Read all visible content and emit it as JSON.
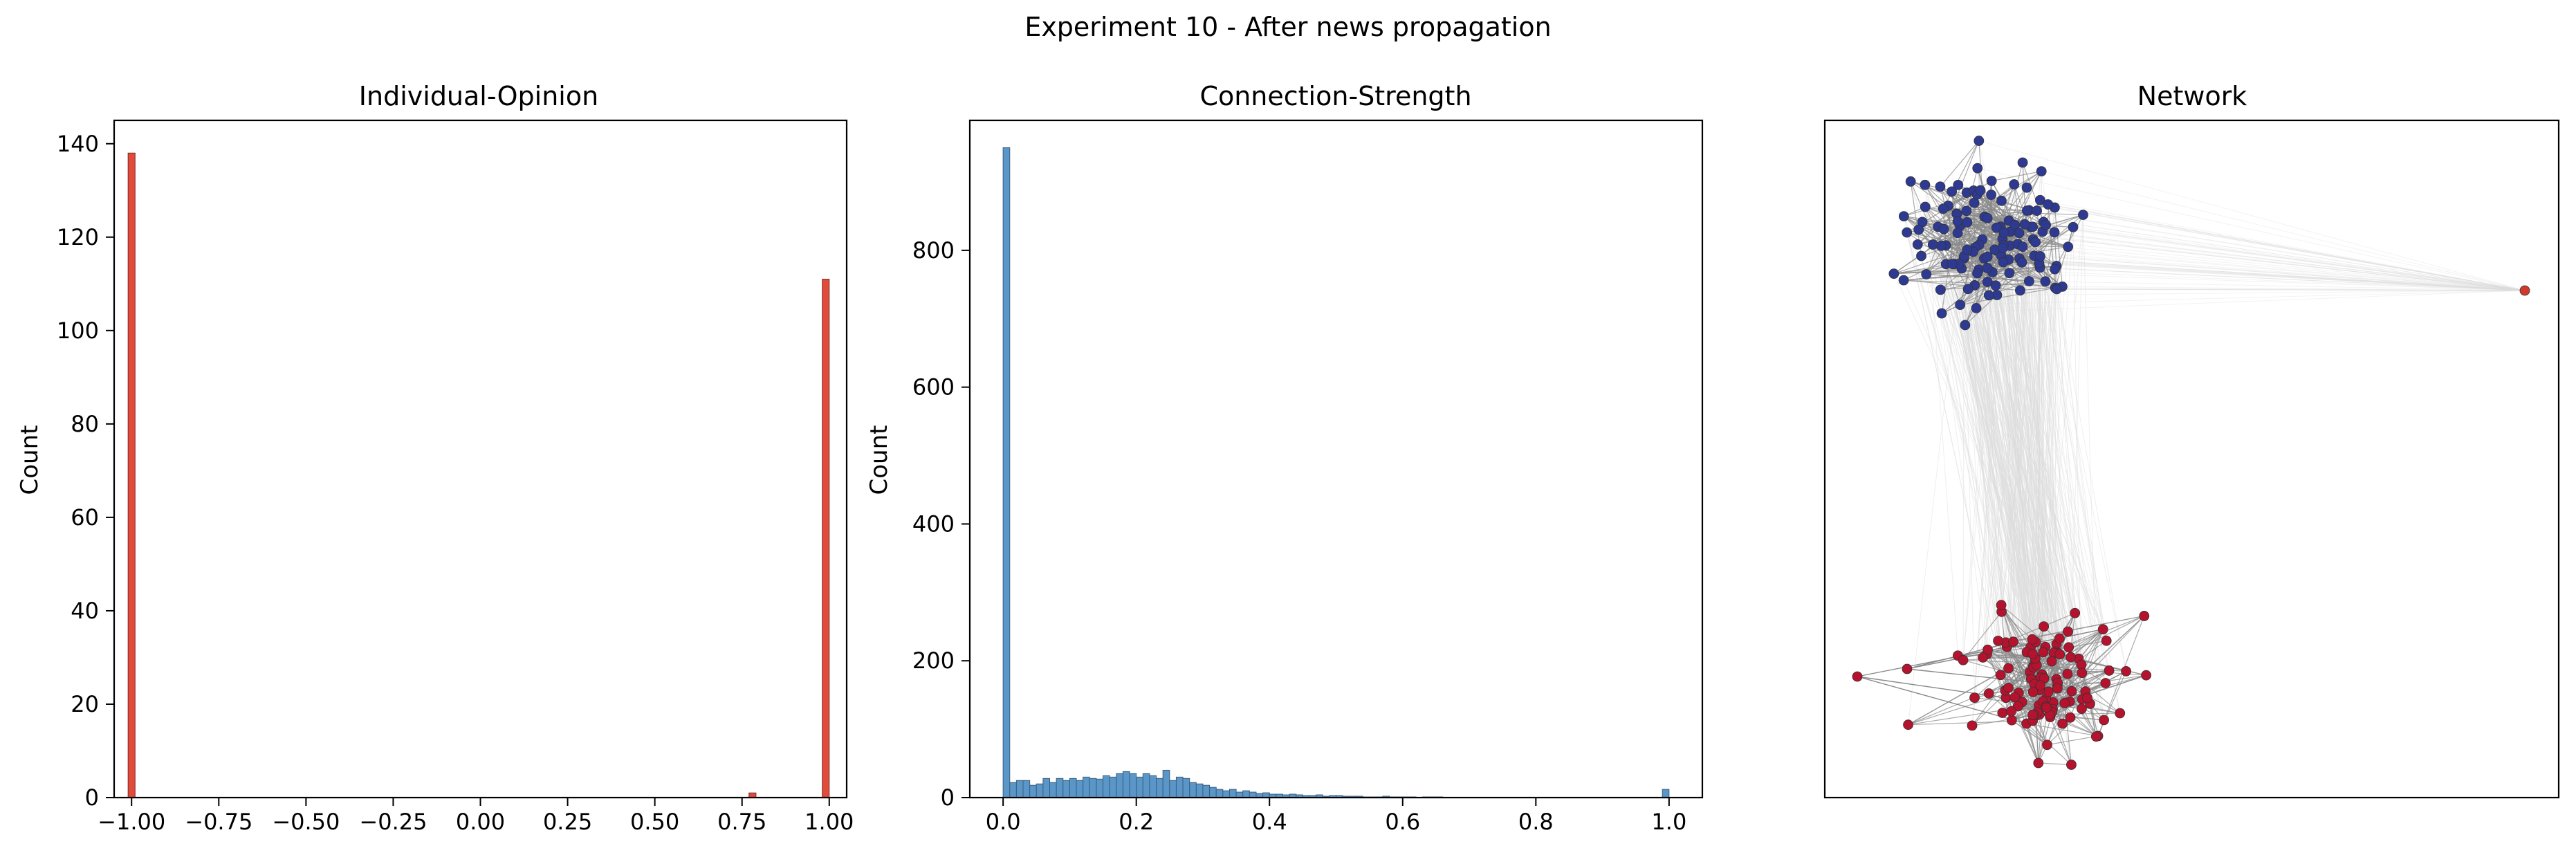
{
  "figure": {
    "suptitle": "Experiment 10 - After news propagation"
  },
  "chart_data": [
    {
      "type": "bar",
      "title": "Individual-Opinion",
      "xlabel": "",
      "ylabel": "Count",
      "xlim": [
        -1.05,
        1.05
      ],
      "ylim": [
        0,
        145
      ],
      "xticks": [
        -1.0,
        -0.75,
        -0.5,
        -0.25,
        0.0,
        0.25,
        0.5,
        0.75,
        1.0
      ],
      "xtick_labels": [
        "−1.00",
        "−0.75",
        "−0.50",
        "−0.25",
        "0.00",
        "0.25",
        "0.50",
        "0.75",
        "1.00"
      ],
      "yticks": [
        0,
        20,
        40,
        60,
        80,
        100,
        120,
        140
      ],
      "ytick_labels": [
        "0",
        "20",
        "40",
        "60",
        "80",
        "100",
        "120",
        "140"
      ],
      "bin_width": 0.02,
      "bins": [
        {
          "x": -1.0,
          "count": 138
        },
        {
          "x": 0.78,
          "count": 1
        },
        {
          "x": 0.99,
          "count": 111
        }
      ],
      "color": "#e04b3c"
    },
    {
      "type": "bar",
      "title": "Connection-Strength",
      "xlabel": "",
      "ylabel": "Count",
      "xlim": [
        -0.05,
        1.05
      ],
      "ylim": [
        0,
        990
      ],
      "xticks": [
        0.0,
        0.2,
        0.4,
        0.6,
        0.8,
        1.0
      ],
      "xtick_labels": [
        "0.0",
        "0.2",
        "0.4",
        "0.6",
        "0.8",
        "1.0"
      ],
      "yticks": [
        0,
        200,
        400,
        600,
        800
      ],
      "ytick_labels": [
        "0",
        "200",
        "400",
        "600",
        "800"
      ],
      "bin_width": 0.01,
      "bin_start": 0.0,
      "counts": [
        950,
        22,
        25,
        25,
        18,
        20,
        28,
        22,
        28,
        25,
        28,
        25,
        30,
        28,
        27,
        32,
        30,
        35,
        38,
        35,
        30,
        35,
        32,
        28,
        40,
        25,
        30,
        28,
        22,
        20,
        18,
        15,
        12,
        10,
        12,
        8,
        10,
        8,
        6,
        7,
        5,
        5,
        4,
        5,
        4,
        3,
        3,
        4,
        2,
        3,
        3,
        2,
        2,
        2,
        1,
        1,
        1,
        2,
        1,
        1,
        1,
        1,
        0,
        1,
        1,
        1,
        0,
        0,
        0,
        0,
        0,
        0,
        0,
        0,
        0,
        0,
        0,
        0,
        0,
        0,
        0,
        0,
        0,
        0,
        0,
        0,
        0,
        0,
        0,
        0,
        0,
        0,
        0,
        0,
        0,
        0,
        0,
        0,
        0,
        12
      ],
      "color": "#5a96c8"
    },
    {
      "type": "network",
      "title": "Network",
      "clusters": [
        {
          "group": "opinion -1",
          "node_count": 125,
          "color": "#2e3a92"
        },
        {
          "group": "opinion +1",
          "node_count": 112,
          "color": "#b5122e"
        }
      ],
      "outlier_nodes": [
        {
          "color": "#d03a2c"
        },
        {
          "color": "#b5122e"
        },
        {
          "color": "#b5122e"
        }
      ],
      "edge_colors": {
        "within_cluster": "#888888",
        "between_clusters": "#dcdcdc"
      }
    }
  ]
}
